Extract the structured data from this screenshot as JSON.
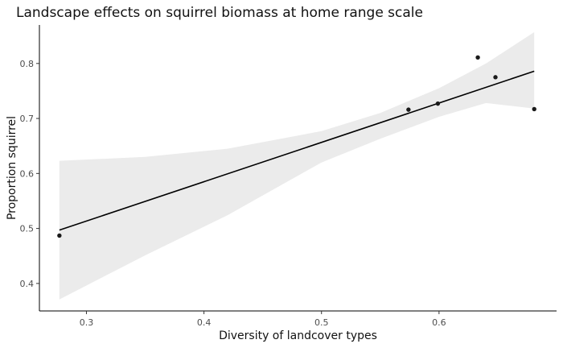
{
  "chart_data": {
    "type": "scatter",
    "title": "Landscape effects on squirrel biomass at home range scale",
    "xlabel": "Diversity of landcover types",
    "ylabel": "Proportion squirrel",
    "xlim": [
      0.26,
      0.7
    ],
    "ylim": [
      0.35,
      0.87
    ],
    "xticks": [
      0.3,
      0.4,
      0.5,
      0.6
    ],
    "yticks": [
      0.4,
      0.5,
      0.6,
      0.7,
      0.8
    ],
    "grid": false,
    "points": [
      {
        "x": 0.277,
        "y": 0.487
      },
      {
        "x": 0.574,
        "y": 0.716
      },
      {
        "x": 0.599,
        "y": 0.727
      },
      {
        "x": 0.633,
        "y": 0.811
      },
      {
        "x": 0.648,
        "y": 0.775
      },
      {
        "x": 0.681,
        "y": 0.717
      }
    ],
    "fit_line": [
      {
        "x": 0.277,
        "y": 0.497
      },
      {
        "x": 0.681,
        "y": 0.786
      }
    ],
    "confidence_band": {
      "x": [
        0.277,
        0.35,
        0.42,
        0.5,
        0.55,
        0.6,
        0.64,
        0.681
      ],
      "upper": [
        0.623,
        0.63,
        0.645,
        0.677,
        0.71,
        0.755,
        0.8,
        0.857
      ],
      "lower": [
        0.371,
        0.451,
        0.524,
        0.62,
        0.663,
        0.703,
        0.728,
        0.718
      ]
    },
    "colors": {
      "points": "#1a1a1a",
      "line": "#000000",
      "band": "#ebebeb",
      "axis": "#000000"
    }
  }
}
